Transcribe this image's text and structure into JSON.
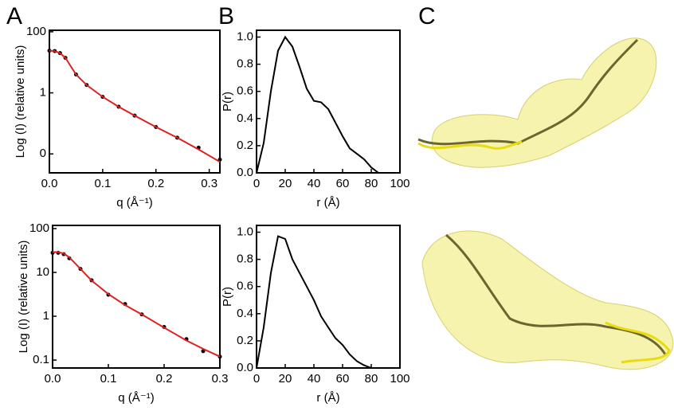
{
  "panel_labels": [
    "A",
    "B",
    "C"
  ],
  "chart_data": [
    {
      "type": "line",
      "ylog": true,
      "xlabel": "q (Å⁻¹)",
      "ylabel": "Log (I) (relative units)",
      "x": [
        0,
        0.01,
        0.02,
        0.03,
        0.05,
        0.07,
        0.1,
        0.13,
        0.16,
        0.2,
        0.24,
        0.28,
        0.32
      ],
      "series": [
        {
          "color": "#000000",
          "marker": true,
          "values": [
            24,
            23.4,
            20,
            14,
            4,
            1.8,
            0.74,
            0.35,
            0.18,
            0.076,
            0.034,
            0.016,
            0.0065
          ]
        },
        {
          "color": "#e02020",
          "marker": false,
          "values": [
            24,
            23.4,
            20,
            14,
            4,
            1.8,
            0.74,
            0.35,
            0.18,
            0.076,
            0.034,
            0.014,
            0.0055
          ]
        }
      ],
      "xlim": [
        0,
        0.32
      ],
      "xticks": [
        {
          "value": 0,
          "label": "0.0"
        },
        0.1,
        0.2,
        0.3
      ],
      "ylim": [
        0.0024,
        112
      ],
      "yticks": [
        100,
        1,
        {
          "value": 0.01,
          "label": "0"
        }
      ]
    },
    {
      "type": "line",
      "ylog": false,
      "xlabel": "r (Å)",
      "ylabel": "P(r)",
      "x": [
        0,
        5,
        10,
        15,
        20,
        25,
        30,
        35,
        40,
        45,
        50,
        55,
        60,
        65,
        70,
        75,
        80,
        85
      ],
      "series": [
        {
          "color": "#000000",
          "marker": false,
          "values": [
            0,
            0.22,
            0.6,
            0.9,
            1.0,
            0.93,
            0.78,
            0.62,
            0.53,
            0.52,
            0.47,
            0.37,
            0.27,
            0.18,
            0.14,
            0.1,
            0.04,
            0
          ]
        }
      ],
      "xlim": [
        0,
        100
      ],
      "xticks": [
        0,
        20,
        40,
        60,
        80,
        100
      ],
      "ylim": [
        0,
        1.05
      ],
      "yticks": [
        {
          "value": 0,
          "label": "0.0"
        },
        0.2,
        0.4,
        0.6,
        0.8,
        {
          "value": 1,
          "label": "1.0"
        }
      ]
    },
    {
      "type": "line",
      "ylog": true,
      "xlabel": "q (Å⁻¹)",
      "ylabel": "Log (I) (relative units)",
      "x": [
        0,
        0.01,
        0.02,
        0.03,
        0.05,
        0.07,
        0.1,
        0.13,
        0.16,
        0.2,
        0.24,
        0.27,
        0.3
      ],
      "series": [
        {
          "color": "#000000",
          "marker": true,
          "values": [
            28,
            28,
            26,
            21,
            12,
            6.6,
            3.1,
            1.9,
            1.1,
            0.57,
            0.3,
            0.16,
            0.12
          ]
        },
        {
          "color": "#e02020",
          "marker": false,
          "values": [
            29,
            29,
            27,
            22,
            12,
            6.5,
            3.2,
            1.8,
            1.1,
            0.55,
            0.28,
            0.18,
            0.12
          ]
        }
      ],
      "xlim": [
        0,
        0.3
      ],
      "xticks": [
        {
          "value": 0,
          "label": "0.0"
        },
        0.1,
        0.2,
        0.3
      ],
      "ylim": [
        0.066,
        118
      ],
      "yticks": [
        100,
        10,
        1,
        0.1
      ]
    },
    {
      "type": "line",
      "ylog": false,
      "xlabel": "r (Å)",
      "ylabel": "P(r)",
      "x": [
        0,
        5,
        10,
        15,
        20,
        25,
        30,
        35,
        40,
        45,
        50,
        55,
        60,
        65,
        70,
        75,
        80
      ],
      "series": [
        {
          "color": "#000000",
          "marker": false,
          "values": [
            0,
            0.3,
            0.7,
            0.97,
            0.95,
            0.8,
            0.7,
            0.6,
            0.5,
            0.38,
            0.3,
            0.22,
            0.17,
            0.1,
            0.05,
            0.02,
            0
          ]
        }
      ],
      "xlim": [
        0,
        100
      ],
      "xticks": [
        0,
        20,
        40,
        60,
        80,
        100
      ],
      "ylim": [
        0,
        1.05
      ],
      "yticks": [
        {
          "value": 0,
          "label": "0.0"
        },
        0.2,
        0.4,
        0.6,
        0.8,
        {
          "value": 1,
          "label": "1.0"
        }
      ]
    }
  ]
}
